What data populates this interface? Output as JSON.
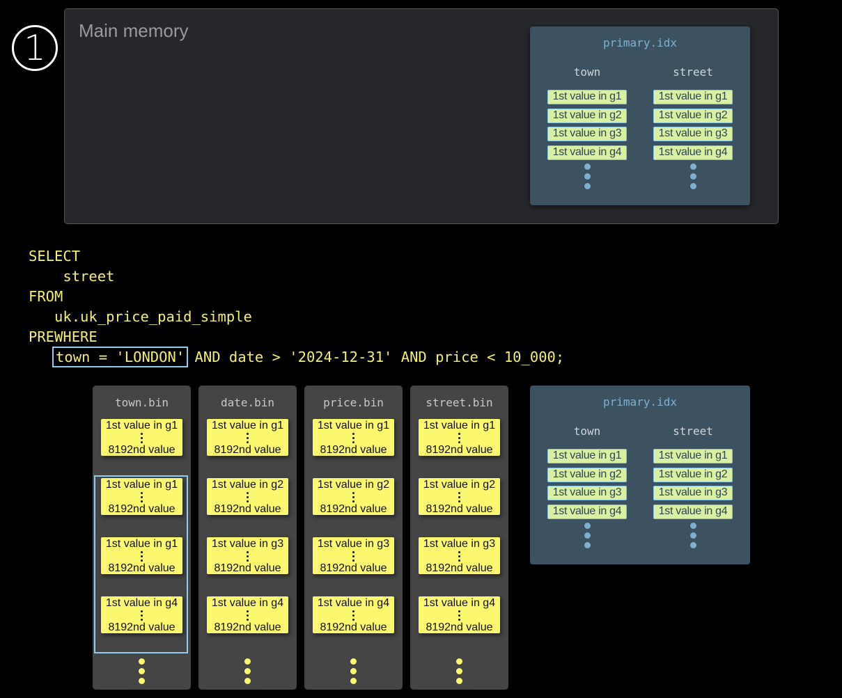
{
  "step_number": "1",
  "main_memory": {
    "title": "Main memory"
  },
  "index": {
    "title": "primary.idx",
    "columns": [
      {
        "name": "town",
        "cells": [
          "1st value in g1",
          "1st value in g2",
          "1st value in g3",
          "1st value in g4"
        ]
      },
      {
        "name": "street",
        "cells": [
          "1st value in g1",
          "1st value in g2",
          "1st value in g3",
          "1st value in g4"
        ]
      }
    ]
  },
  "sql": {
    "lines": [
      "SELECT",
      "    street",
      "FROM",
      "   uk.uk_price_paid_simple",
      "PREWHERE"
    ],
    "indent": "   ",
    "highlight": "town = 'LONDON'",
    "rest": " AND date > '2024-12-31' AND price < 10_000;"
  },
  "bins": [
    {
      "name": "town.bin",
      "granules": [
        "1st value in g1",
        "1st value in g1",
        "1st value in g1",
        "1st value in g4"
      ]
    },
    {
      "name": "date.bin",
      "granules": [
        "1st value in g1",
        "1st value in g2",
        "1st value in g3",
        "1st value in g4"
      ]
    },
    {
      "name": "price.bin",
      "granules": [
        "1st value in g1",
        "1st value in g2",
        "1st value in g3",
        "1st value in g4"
      ]
    },
    {
      "name": "street.bin",
      "granules": [
        "1st value in g1",
        "1st value in g2",
        "1st value in g3",
        "1st value in g4"
      ]
    }
  ],
  "granule_end": "8192nd value",
  "colors": {
    "sql": "#f4f06f",
    "granule": "#fbf86f",
    "highlight": "#8fcdf0",
    "index_bg": "#3c5260",
    "index_cell": "#d9f0a3",
    "index_dots": "#7fb1cf"
  }
}
